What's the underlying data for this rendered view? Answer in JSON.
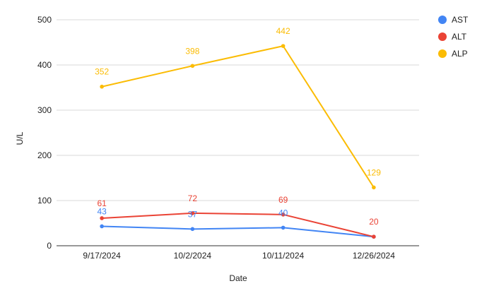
{
  "chart_data": {
    "type": "line",
    "categories": [
      "9/17/2024",
      "10/2/2024",
      "10/11/2024",
      "12/26/2024"
    ],
    "series": [
      {
        "name": "AST",
        "color": "#4285f4",
        "values": [
          43,
          37,
          40,
          20
        ],
        "labels": [
          "43",
          "37",
          "40",
          ""
        ]
      },
      {
        "name": "ALT",
        "color": "#ea4335",
        "values": [
          61,
          72,
          69,
          20
        ],
        "labels": [
          "61",
          "72",
          "69",
          "20"
        ]
      },
      {
        "name": "ALP",
        "color": "#fbbc04",
        "values": [
          352,
          398,
          442,
          129
        ],
        "labels": [
          "352",
          "398",
          "442",
          "129"
        ]
      }
    ],
    "xlabel": "Date",
    "ylabel": "U/L",
    "ylim": [
      0,
      500
    ],
    "yticks": [
      "0",
      "100",
      "200",
      "300",
      "400",
      "500"
    ],
    "grid": true,
    "legend_position": "right"
  }
}
